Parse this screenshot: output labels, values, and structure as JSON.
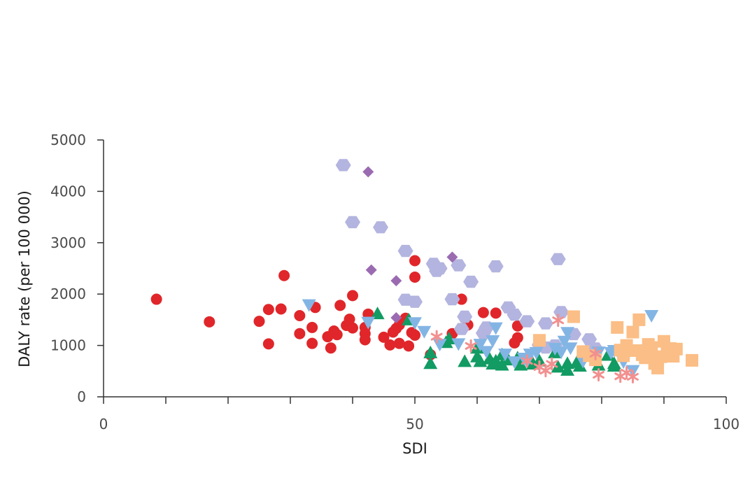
{
  "chart_data": {
    "type": "scatter",
    "title": "",
    "xlabel": "SDI",
    "ylabel": "DALY rate (per 100 000)",
    "xlim": [
      0,
      100
    ],
    "ylim": [
      0,
      5000
    ],
    "x_ticks": [
      0,
      10,
      20,
      30,
      40,
      50,
      60,
      70,
      80,
      90,
      100
    ],
    "x_tick_labels": [
      "0",
      "",
      "",
      "",
      "",
      "50",
      "",
      "",
      "",
      "",
      "100"
    ],
    "y_ticks": [
      0,
      1000,
      2000,
      3000,
      4000,
      5000
    ],
    "y_tick_labels": [
      "0",
      "1000",
      "2000",
      "3000",
      "4000",
      "5000"
    ],
    "grid": false,
    "legend": "none",
    "series": [
      {
        "marker": "circle",
        "color": "#e0262a",
        "points": [
          [
            8.5,
            1900
          ],
          [
            17,
            1460
          ],
          [
            25,
            1470
          ],
          [
            26.5,
            1700
          ],
          [
            26.5,
            1030
          ],
          [
            28.5,
            1710
          ],
          [
            29,
            2360
          ],
          [
            31.5,
            1580
          ],
          [
            31.5,
            1230
          ],
          [
            33.5,
            1350
          ],
          [
            33.5,
            1040
          ],
          [
            34,
            1740
          ],
          [
            36,
            1170
          ],
          [
            36.5,
            950
          ],
          [
            37,
            1280
          ],
          [
            37.5,
            1210
          ],
          [
            38,
            1780
          ],
          [
            39,
            1390
          ],
          [
            39.5,
            1510
          ],
          [
            40,
            1340
          ],
          [
            40,
            1970
          ],
          [
            42,
            1230
          ],
          [
            42,
            1110
          ],
          [
            42,
            1350
          ],
          [
            42.5,
            1610
          ],
          [
            45,
            1160
          ],
          [
            46,
            1010
          ],
          [
            46.5,
            1260
          ],
          [
            47,
            1330
          ],
          [
            47.5,
            1040
          ],
          [
            47.5,
            1400
          ],
          [
            48.5,
            1530
          ],
          [
            49,
            990
          ],
          [
            49.5,
            1250
          ],
          [
            50,
            1200
          ],
          [
            50,
            2650
          ],
          [
            50,
            2330
          ],
          [
            52.5,
            820
          ],
          [
            56,
            1230
          ],
          [
            57.5,
            1900
          ],
          [
            58.5,
            1400
          ],
          [
            61,
            1640
          ],
          [
            63,
            1630
          ],
          [
            66,
            1050
          ],
          [
            66.5,
            1150
          ],
          [
            66.5,
            1380
          ]
        ]
      },
      {
        "marker": "hexagon",
        "color": "#b3b4df",
        "points": [
          [
            38.5,
            4510
          ],
          [
            40,
            3400
          ],
          [
            44.5,
            3300
          ],
          [
            48.5,
            2840
          ],
          [
            48.5,
            1890
          ],
          [
            50,
            1850
          ],
          [
            53,
            2590
          ],
          [
            53.5,
            2450
          ],
          [
            54,
            2500
          ],
          [
            56,
            1900
          ],
          [
            57,
            2560
          ],
          [
            57.5,
            1320
          ],
          [
            58,
            1560
          ],
          [
            59,
            2240
          ],
          [
            61,
            1240
          ],
          [
            61.5,
            1350
          ],
          [
            63,
            2540
          ],
          [
            65,
            1740
          ],
          [
            66,
            1600
          ],
          [
            68,
            1470
          ],
          [
            70,
            1010
          ],
          [
            71,
            960
          ],
          [
            71,
            1430
          ],
          [
            72.5,
            1000
          ],
          [
            73,
            2680
          ],
          [
            73.5,
            1650
          ],
          [
            75.5,
            1220
          ],
          [
            78,
            1120
          ],
          [
            79,
            940
          ]
        ]
      },
      {
        "marker": "diamond",
        "color": "#9b6bb1",
        "points": [
          [
            42.5,
            4380
          ],
          [
            43,
            2470
          ],
          [
            47,
            2260
          ],
          [
            47,
            1540
          ],
          [
            56,
            2720
          ]
        ]
      },
      {
        "marker": "triangle-up",
        "color": "#129b63",
        "points": [
          [
            44,
            1620
          ],
          [
            49,
            1500
          ],
          [
            52.5,
            860
          ],
          [
            52.5,
            650
          ],
          [
            55,
            1060
          ],
          [
            55.5,
            1130
          ],
          [
            58,
            690
          ],
          [
            60,
            950
          ],
          [
            60,
            780
          ],
          [
            60.5,
            690
          ],
          [
            62,
            740
          ],
          [
            62.5,
            640
          ],
          [
            63,
            700
          ],
          [
            64,
            620
          ],
          [
            64,
            820
          ],
          [
            65,
            720
          ],
          [
            66.5,
            760
          ],
          [
            67,
            620
          ],
          [
            69,
            640
          ],
          [
            70,
            700
          ],
          [
            72.5,
            860
          ],
          [
            73,
            580
          ],
          [
            74.5,
            650
          ],
          [
            74.5,
            520
          ],
          [
            76,
            670
          ],
          [
            76.5,
            600
          ],
          [
            79.5,
            620
          ],
          [
            81,
            810
          ],
          [
            82,
            600
          ],
          [
            82,
            650
          ]
        ]
      },
      {
        "marker": "triangle-down",
        "color": "#83b5e4",
        "points": [
          [
            33,
            1790
          ],
          [
            42.5,
            1450
          ],
          [
            50,
            1440
          ],
          [
            51.5,
            1270
          ],
          [
            54,
            1020
          ],
          [
            57,
            1030
          ],
          [
            60.5,
            1020
          ],
          [
            61.5,
            880
          ],
          [
            62.5,
            1090
          ],
          [
            63,
            1340
          ],
          [
            64.5,
            830
          ],
          [
            66,
            680
          ],
          [
            67.5,
            750
          ],
          [
            68,
            690
          ],
          [
            68.5,
            830
          ],
          [
            69.5,
            860
          ],
          [
            72.5,
            940
          ],
          [
            73.5,
            870
          ],
          [
            74,
            1080
          ],
          [
            74.5,
            1250
          ],
          [
            75,
            950
          ],
          [
            77,
            690
          ],
          [
            79,
            730
          ],
          [
            79.5,
            870
          ],
          [
            81.5,
            860
          ],
          [
            82,
            900
          ],
          [
            83.5,
            680
          ],
          [
            85,
            510
          ],
          [
            88,
            1580
          ]
        ]
      },
      {
        "marker": "square",
        "color": "#fbbe86",
        "points": [
          [
            70,
            1100
          ],
          [
            75.5,
            1560
          ],
          [
            77,
            880
          ],
          [
            78,
            800
          ],
          [
            79,
            720
          ],
          [
            82.5,
            1350
          ],
          [
            83,
            910
          ],
          [
            83.5,
            800
          ],
          [
            84,
            1000
          ],
          [
            85,
            1260
          ],
          [
            85.5,
            900
          ],
          [
            86,
            1500
          ],
          [
            86.5,
            820
          ],
          [
            87,
            760
          ],
          [
            87.5,
            1020
          ],
          [
            88,
            880
          ],
          [
            88,
            960
          ],
          [
            88.5,
            650
          ],
          [
            89,
            560
          ],
          [
            89.5,
            780
          ],
          [
            90,
            1080
          ],
          [
            90.5,
            880
          ],
          [
            91,
            940
          ],
          [
            91.5,
            790
          ],
          [
            92,
            930
          ],
          [
            94.5,
            710
          ]
        ]
      },
      {
        "marker": "asterisk",
        "color": "#f2908f",
        "points": [
          [
            53.5,
            1170
          ],
          [
            59,
            990
          ],
          [
            68,
            700
          ],
          [
            70,
            580
          ],
          [
            71,
            510
          ],
          [
            72,
            640
          ],
          [
            73,
            1490
          ],
          [
            79,
            840
          ],
          [
            79.5,
            430
          ],
          [
            83,
            400
          ],
          [
            84,
            470
          ],
          [
            85,
            390
          ]
        ]
      }
    ]
  }
}
